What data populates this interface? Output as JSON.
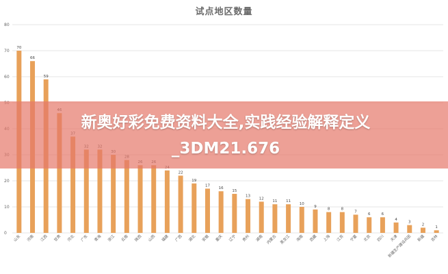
{
  "chart_data": {
    "type": "bar",
    "title": "试点地区数量",
    "categories": [
      "山东",
      "河南",
      "江西",
      "甘肃",
      "河北",
      "广东",
      "青海",
      "浙江",
      "云南",
      "陕西",
      "山西",
      "福建",
      "广西",
      "湖北",
      "安徽",
      "重庆",
      "辽宁",
      "贵州",
      "湖南",
      "内蒙古",
      "黑龙江",
      "海南",
      "西藏",
      "上海",
      "江苏",
      "宁夏",
      "北京",
      "四川",
      "天津",
      "新疆生产建设兵团",
      "新疆",
      "吉林"
    ],
    "values": [
      70,
      66,
      59,
      46,
      37,
      32,
      32,
      30,
      28,
      26,
      26,
      24,
      22,
      19,
      17,
      16,
      15,
      13,
      12,
      11,
      11,
      10,
      9,
      8,
      8,
      7,
      6,
      6,
      4,
      3,
      2,
      1
    ],
    "ylim": [
      0,
      80
    ],
    "yticks": [
      0,
      10,
      20,
      30,
      40,
      50,
      60,
      70,
      80
    ],
    "grid": true,
    "bar_color": "#e8a15a"
  },
  "overlay": {
    "line1": "新奥好彩免费资料大全,实践经验解释定义",
    "line2": "_3DM21.676"
  }
}
